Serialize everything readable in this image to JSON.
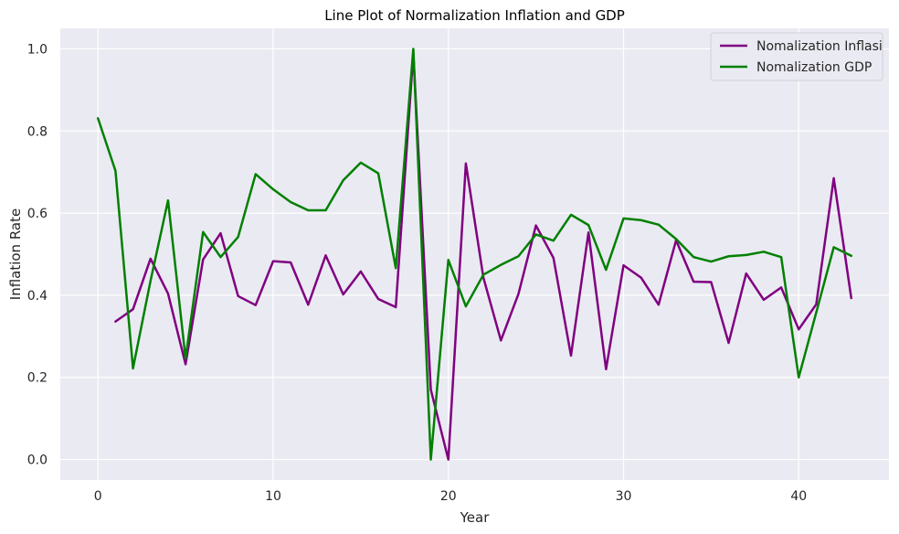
{
  "chart_data": {
    "type": "line",
    "title": "Line Plot of Normalization Inflation and GDP",
    "xlabel": "Year",
    "ylabel": "Inflation Rate",
    "xlim": [
      -2.15,
      45.15
    ],
    "ylim": [
      -0.05,
      1.05
    ],
    "xticks": [
      0,
      10,
      20,
      30,
      40
    ],
    "yticks": [
      0.0,
      0.2,
      0.4,
      0.6,
      0.8,
      1.0
    ],
    "xtick_labels": [
      "0",
      "10",
      "20",
      "30",
      "40"
    ],
    "ytick_labels": [
      "0.0",
      "0.2",
      "0.4",
      "0.6",
      "0.8",
      "1.0"
    ],
    "grid": true,
    "legend_position": "top-right",
    "background_color": "#eaeaf2",
    "grid_color": "#ffffff",
    "series": [
      {
        "name": "Nomalization Inflasi",
        "color": "#800080",
        "x": [
          1,
          2,
          3,
          4,
          5,
          6,
          7,
          8,
          9,
          10,
          11,
          12,
          13,
          14,
          15,
          16,
          17,
          18,
          19,
          20,
          21,
          22,
          23,
          24,
          25,
          26,
          27,
          28,
          29,
          30,
          31,
          32,
          33,
          34,
          35,
          36,
          37,
          38,
          39,
          40,
          41,
          42,
          43
        ],
        "y": [
          0.336,
          0.366,
          0.489,
          0.404,
          0.232,
          0.487,
          0.551,
          0.398,
          0.376,
          0.483,
          0.48,
          0.377,
          0.497,
          0.402,
          0.458,
          0.391,
          0.371,
          0.99,
          0.17,
          0.0,
          0.721,
          0.443,
          0.29,
          0.403,
          0.57,
          0.491,
          0.253,
          0.553,
          0.22,
          0.473,
          0.443,
          0.377,
          0.534,
          0.433,
          0.432,
          0.284,
          0.453,
          0.389,
          0.419,
          0.317,
          0.378,
          0.685,
          0.393
        ]
      },
      {
        "name": "Nomalization GDP",
        "color": "#008000",
        "x": [
          0,
          1,
          2,
          3,
          4,
          5,
          6,
          7,
          8,
          9,
          10,
          11,
          12,
          13,
          14,
          15,
          16,
          17,
          18,
          19,
          20,
          21,
          22,
          23,
          24,
          25,
          26,
          27,
          28,
          29,
          30,
          31,
          32,
          33,
          34,
          35,
          36,
          37,
          38,
          39,
          40,
          41,
          42,
          43
        ],
        "y": [
          0.831,
          0.703,
          0.222,
          0.435,
          0.631,
          0.246,
          0.554,
          0.493,
          0.542,
          0.695,
          0.658,
          0.627,
          0.607,
          0.607,
          0.68,
          0.723,
          0.697,
          0.466,
          1.0,
          0.0,
          0.486,
          0.373,
          0.45,
          0.474,
          0.495,
          0.548,
          0.533,
          0.596,
          0.571,
          0.462,
          0.587,
          0.583,
          0.572,
          0.537,
          0.493,
          0.482,
          0.495,
          0.498,
          0.506,
          0.493,
          0.2,
          0.358,
          0.517,
          0.496
        ]
      }
    ]
  }
}
